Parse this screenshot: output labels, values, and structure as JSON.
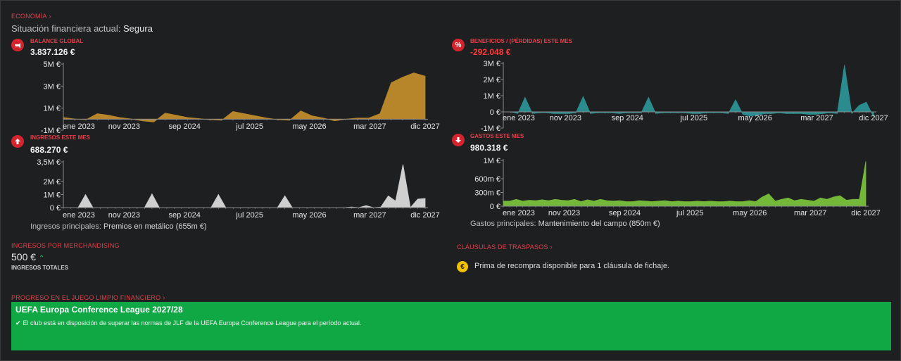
{
  "economy": {
    "section_label": "ECONOMÍA",
    "status_label": "Situación financiera actual:",
    "status_value": "Segura"
  },
  "balance": {
    "title": "BALANCE GLOBAL",
    "value": "3.837.126 €",
    "icon": "piggy-bank-icon",
    "color": "#b7852a"
  },
  "profit": {
    "title": "BENEFICIOS / (PÉRDIDAS) ESTE MES",
    "value": "-292.048 €",
    "icon": "percent-icon",
    "color": "#2a8c8f"
  },
  "income": {
    "title": "INGRESOS ESTE MES",
    "value": "688.270 €",
    "icon": "arrow-up-icon",
    "color": "#cfcfcf",
    "main_label": "Ingresos principales:",
    "main_value": "Premios en metálico (655m €)"
  },
  "expenses": {
    "title": "GASTOS ESTE MES",
    "value": "980.318 €",
    "icon": "arrow-down-icon",
    "color": "#74b83a",
    "main_label": "Gastos principales:",
    "main_value": "Mantenimiento del campo (850m €)"
  },
  "merchandising": {
    "title": "INGRESOS POR MERCHANDISING",
    "value": "500 €",
    "trend_icon": "chevron-up-icon",
    "caption": "INGRESOS TOTALES"
  },
  "transfers": {
    "title": "CLÁUSULAS DE TRASPASOS",
    "icon": "euro-coin-icon",
    "message": "Prima de recompra disponible para 1 cláusula de fichaje."
  },
  "ffp": {
    "section_label": "PROGRESO EN EL JUEGO LIMPIO FINANCIERO",
    "competition": "UEFA Europa Conference League 2027/28",
    "message": "El club está en disposición de superar las normas de JLF de la UEFA Europa Conference League para el período actual.",
    "color": "#0fa845"
  },
  "chart_data": [
    {
      "id": "balance",
      "type": "area",
      "color": "#b7852a",
      "x_ticks": [
        "ene 2023",
        "nov 2023",
        "sep 2024",
        "jul 2025",
        "may 2026",
        "mar 2027",
        "dic 2027"
      ],
      "y_ticks": [
        "5M €",
        "3M €",
        "1M €",
        "-1M €"
      ],
      "y_tick_values": [
        5000000,
        3000000,
        1000000,
        -1000000
      ],
      "ylim": [
        -1000000,
        5000000
      ],
      "values": [
        150000,
        20000,
        -50000,
        500000,
        350000,
        150000,
        20000,
        -150000,
        -250000,
        550000,
        350000,
        150000,
        50000,
        -50000,
        -100000,
        700000,
        500000,
        300000,
        100000,
        -50000,
        -100000,
        750000,
        300000,
        100000,
        -150000,
        0,
        100000,
        100000,
        500000,
        3300000,
        3800000,
        4200000,
        3900000
      ]
    },
    {
      "id": "profit",
      "type": "area",
      "color": "#2a8c8f",
      "x_ticks": [
        "ene 2023",
        "nov 2023",
        "sep 2024",
        "jul 2025",
        "may 2026",
        "mar 2027",
        "dic 2027"
      ],
      "y_ticks": [
        "3M €",
        "2M €",
        "1M €",
        "0 €",
        "-1M €"
      ],
      "y_tick_values": [
        3000000,
        2000000,
        1000000,
        0,
        -1000000
      ],
      "ylim": [
        -1000000,
        3000000
      ],
      "values": [
        0,
        0,
        -100000,
        900000,
        -100000,
        -50000,
        -50000,
        -100000,
        -100000,
        -100000,
        -50000,
        950000,
        -100000,
        -50000,
        -50000,
        -50000,
        -100000,
        -50000,
        -50000,
        -50000,
        900000,
        -100000,
        -50000,
        -50000,
        -50000,
        -50000,
        -100000,
        -100000,
        -50000,
        -50000,
        -50000,
        -100000,
        750000,
        -150000,
        -250000,
        -200000,
        -100000,
        -100000,
        -50000,
        -100000,
        -100000,
        -100000,
        -150000,
        -150000,
        -100000,
        -50000,
        -100000,
        2900000,
        -100000,
        400000,
        600000,
        -300000
      ]
    },
    {
      "id": "income",
      "type": "area",
      "color": "#cfcfcf",
      "x_ticks": [
        "ene 2023",
        "nov 2023",
        "sep 2024",
        "jul 2025",
        "may 2026",
        "mar 2027",
        "dic 2027"
      ],
      "y_ticks": [
        "3,5M €",
        "2M €",
        "1M €",
        "0 €"
      ],
      "y_tick_values": [
        3500000,
        2000000,
        1000000,
        0
      ],
      "ylim": [
        0,
        3500000
      ],
      "values": [
        0,
        0,
        0,
        1000000,
        0,
        0,
        0,
        0,
        0,
        0,
        0,
        0,
        1050000,
        0,
        0,
        0,
        0,
        0,
        0,
        0,
        0,
        1000000,
        0,
        0,
        0,
        0,
        0,
        0,
        0,
        0,
        900000,
        0,
        0,
        0,
        0,
        0,
        0,
        0,
        0,
        50000,
        0,
        150000,
        0,
        50000,
        900000,
        500000,
        3300000,
        0,
        650000,
        700000
      ]
    },
    {
      "id": "expenses",
      "type": "area",
      "color": "#74b83a",
      "x_ticks": [
        "ene 2023",
        "nov 2023",
        "sep 2024",
        "jul 2025",
        "may 2026",
        "mar 2027",
        "dic 2027"
      ],
      "y_ticks": [
        "1M €",
        "600m €",
        "300m €",
        "0 €"
      ],
      "y_tick_values": [
        1000000,
        600000,
        300000,
        0
      ],
      "ylim": [
        0,
        1000000
      ],
      "values": [
        110000,
        110000,
        150000,
        110000,
        130000,
        120000,
        140000,
        120000,
        150000,
        130000,
        120000,
        150000,
        100000,
        140000,
        110000,
        150000,
        120000,
        110000,
        120000,
        100000,
        100000,
        120000,
        110000,
        100000,
        110000,
        120000,
        100000,
        110000,
        100000,
        100000,
        110000,
        100000,
        110000,
        100000,
        100000,
        110000,
        100000,
        100000,
        120000,
        100000,
        200000,
        270000,
        110000,
        150000,
        180000,
        120000,
        150000,
        130000,
        110000,
        180000,
        150000,
        200000,
        230000,
        130000,
        150000,
        150000,
        980000
      ]
    }
  ]
}
